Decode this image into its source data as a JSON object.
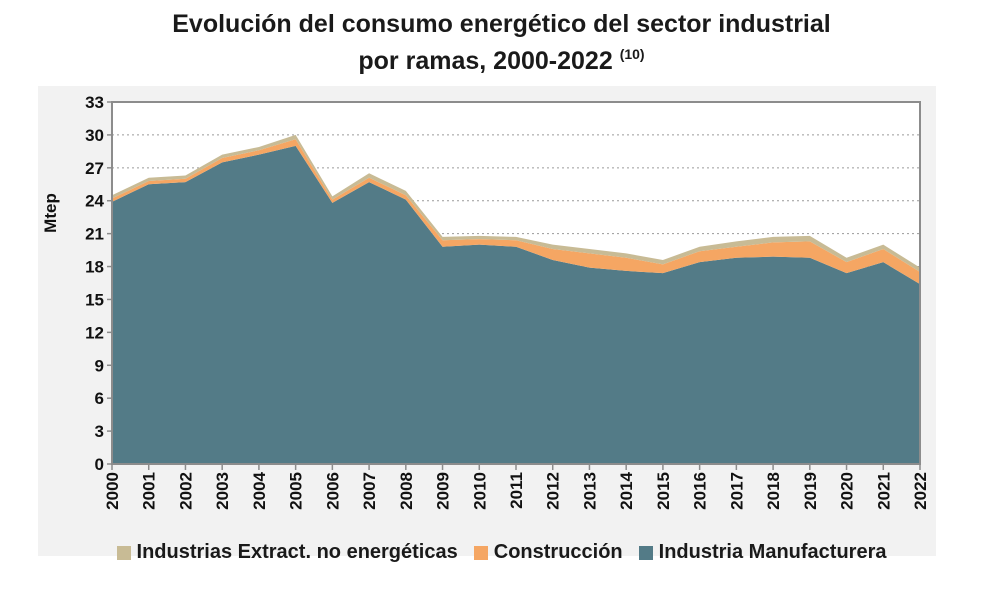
{
  "title": {
    "line1": "Evolución del consumo energético del sector industrial",
    "line2": "por ramas, 2000-2022",
    "note": "(10)"
  },
  "chart_data": {
    "type": "area",
    "stacked": true,
    "title": "Evolución del consumo energético del sector industrial por ramas, 2000-2022 (10)",
    "xlabel": "",
    "ylabel": "Mtep",
    "ylim": [
      0,
      33
    ],
    "yticks": [
      0,
      3,
      6,
      9,
      12,
      15,
      18,
      21,
      24,
      27,
      30,
      33
    ],
    "grid": true,
    "legend_position": "bottom",
    "categories": [
      "2000",
      "2001",
      "2002",
      "2003",
      "2004",
      "2005",
      "2006",
      "2007",
      "2008",
      "2009",
      "2010",
      "2011",
      "2012",
      "2013",
      "2014",
      "2015",
      "2016",
      "2017",
      "2018",
      "2019",
      "2020",
      "2021",
      "2022"
    ],
    "series": [
      {
        "name": "Industria Manufacturera",
        "color": "#537b87",
        "values": [
          23.9,
          25.5,
          25.7,
          27.5,
          28.2,
          29.0,
          23.8,
          25.7,
          24.1,
          19.8,
          20.0,
          19.8,
          18.6,
          17.9,
          17.6,
          17.4,
          18.4,
          18.8,
          18.9,
          18.8,
          17.4,
          18.4,
          16.4
        ]
      },
      {
        "name": "Construcción",
        "color": "#f5a663",
        "values": [
          0.3,
          0.3,
          0.3,
          0.4,
          0.4,
          0.6,
          0.3,
          0.4,
          0.4,
          0.6,
          0.5,
          0.6,
          1.0,
          1.3,
          1.2,
          0.8,
          1.0,
          1.0,
          1.3,
          1.5,
          1.0,
          1.2,
          1.1
        ]
      },
      {
        "name": "Industrias Extract. no energéticas",
        "color": "#c8bb95",
        "values": [
          0.3,
          0.3,
          0.3,
          0.3,
          0.3,
          0.4,
          0.3,
          0.4,
          0.4,
          0.3,
          0.3,
          0.3,
          0.4,
          0.4,
          0.4,
          0.4,
          0.4,
          0.5,
          0.5,
          0.5,
          0.4,
          0.4,
          0.4
        ]
      }
    ]
  },
  "legend": [
    {
      "label": "Industrias Extract. no energéticas",
      "color": "#c8bb95"
    },
    {
      "label": "Construcción",
      "color": "#f5a663"
    },
    {
      "label": "Industria Manufacturera",
      "color": "#537b87"
    }
  ]
}
